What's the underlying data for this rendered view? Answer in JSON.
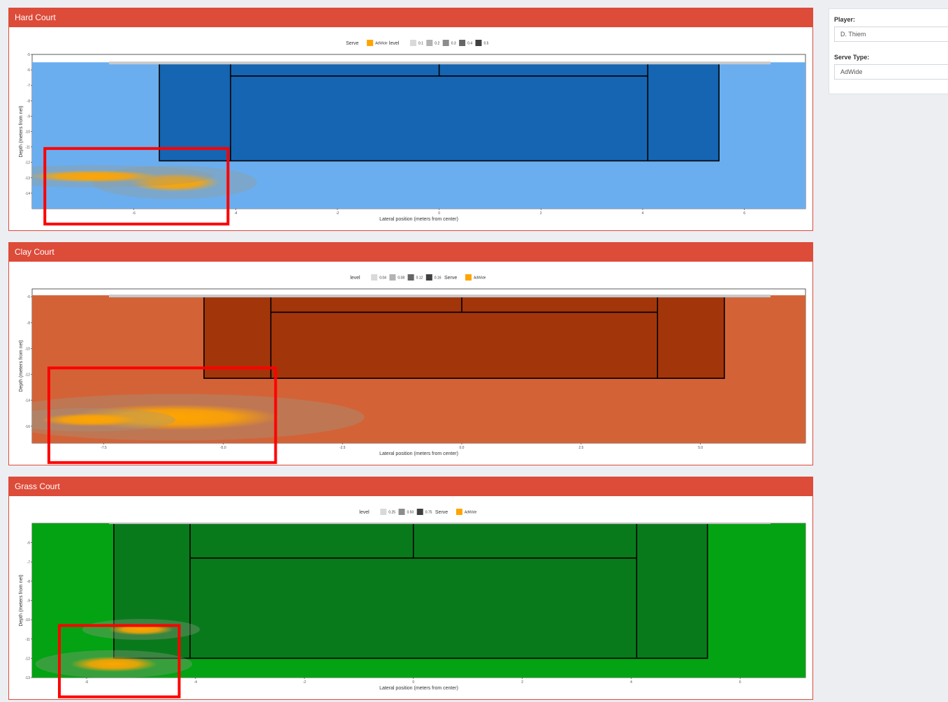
{
  "sidebar": {
    "player_label": "Player:",
    "player_value": "D. Thiem",
    "serve_type_label": "Serve Type:",
    "serve_type_value": "AdWide"
  },
  "colors": {
    "panel_header": "#dd4b39",
    "highlight_box": "#ff0000",
    "serve_fill": "#ffa500"
  },
  "chart_data": [
    {
      "type": "heatmap",
      "panel_title": "Hard Court",
      "xlabel": "Lateral position (meters from center)",
      "ylabel": "Depth (meters from net)",
      "xlim": [
        -8.0,
        7.2
      ],
      "ylim": [
        -15.0,
        -5.0
      ],
      "x_ticks": [
        "-6",
        "-4",
        "-2",
        "0",
        "2",
        "4",
        "6"
      ],
      "y_ticks": [
        "-14",
        "-13",
        "-12",
        "-11",
        "-10",
        "-9",
        "-8",
        "-7",
        "-6",
        "-5"
      ],
      "surface_color": "#6aaef0",
      "court_color": "#1565b2",
      "legend_serve_title": "Serve",
      "legend_serve_label": "AdWide",
      "legend_level_title": "level",
      "legend_levels": [
        "0.1",
        "0.2",
        "0.3",
        "0.4",
        "0.5"
      ],
      "legend_order": "serve-first",
      "court": {
        "outer_x": [
          -5.5,
          5.5
        ],
        "singles_x": [
          -4.1,
          4.1
        ],
        "service_line_y": -6.4,
        "baseline_y": -11.9,
        "top_y": -5.6
      },
      "density_blobs": [
        {
          "x": -5.2,
          "y": -13.3,
          "rx": 0.9,
          "ry": 0.6
        },
        {
          "x": -6.8,
          "y": -12.9,
          "rx": 1.3,
          "ry": 0.4
        }
      ],
      "highlight_box": {
        "x": [
          -7.75,
          -4.15
        ],
        "y": [
          -11.1,
          -16.0
        ]
      }
    },
    {
      "type": "heatmap",
      "panel_title": "Clay Court",
      "xlabel": "Lateral position (meters from center)",
      "ylabel": "Depth (meters from net)",
      "xlim": [
        -9.0,
        7.2
      ],
      "ylim": [
        -17.3,
        -5.4
      ],
      "x_ticks": [
        "-7.5",
        "-5.0",
        "-2.5",
        "0.0",
        "2.5",
        "5.0"
      ],
      "y_ticks": [
        "-16",
        "-14",
        "-12",
        "-10",
        "-8",
        "-6"
      ],
      "surface_color": "#d36337",
      "court_color": "#a3350b",
      "legend_level_title": "level",
      "legend_levels": [
        "0.04",
        "0.08",
        "0.12",
        "0.16"
      ],
      "legend_serve_title": "Serve",
      "legend_serve_label": "AdWide",
      "legend_order": "level-first",
      "court": {
        "outer_x": [
          -5.4,
          5.5
        ],
        "singles_x": [
          -4.0,
          4.1
        ],
        "service_line_y": -7.2,
        "baseline_y": -12.3,
        "top_y": -6.0
      },
      "density_blobs": [
        {
          "x": -6.0,
          "y": -15.3,
          "rx": 2.2,
          "ry": 1.0
        },
        {
          "x": -7.8,
          "y": -15.5,
          "rx": 1.0,
          "ry": 0.5
        }
      ],
      "highlight_box": {
        "x": [
          -8.65,
          -3.9
        ],
        "y": [
          -11.5,
          -18.8
        ]
      }
    },
    {
      "type": "heatmap",
      "panel_title": "Grass Court",
      "xlabel": "Lateral position (meters from center)",
      "ylabel": "Depth (meters from net)",
      "xlim": [
        -7.0,
        7.2
      ],
      "ylim": [
        -13.0,
        -5.0
      ],
      "x_ticks": [
        "-6",
        "-4",
        "-2",
        "0",
        "2",
        "4",
        "6"
      ],
      "y_ticks": [
        "-13",
        "-12",
        "-11",
        "-10",
        "-9",
        "-8",
        "-7",
        "-6"
      ],
      "surface_color": "#03a313",
      "court_color": "#097a1c",
      "legend_level_title": "level",
      "legend_levels": [
        "0.25",
        "0.50",
        "0.75"
      ],
      "legend_serve_title": "Serve",
      "legend_serve_label": "AdWide",
      "legend_order": "level-first",
      "court": {
        "outer_x": [
          -5.5,
          5.4
        ],
        "singles_x": [
          -4.1,
          4.1
        ],
        "service_line_y": -6.8,
        "baseline_y": -12.0,
        "top_y": -5.0
      },
      "density_blobs": [
        {
          "x": -5.5,
          "y": -12.3,
          "rx": 0.8,
          "ry": 0.4
        },
        {
          "x": -5.0,
          "y": -10.5,
          "rx": 0.6,
          "ry": 0.3
        }
      ],
      "highlight_box": {
        "x": [
          -6.5,
          -4.3
        ],
        "y": [
          -10.3,
          -14.0
        ]
      }
    }
  ]
}
